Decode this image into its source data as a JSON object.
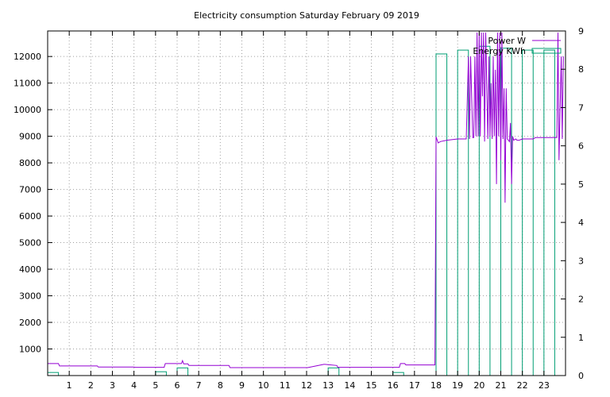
{
  "chart_data": {
    "type": "line",
    "title": "Electricity consumption Saturday February 09 2019",
    "xlabel": "",
    "ylabel": "",
    "y2label": "",
    "xlim": [
      0,
      24
    ],
    "ylim": [
      0,
      12960
    ],
    "y2lim": [
      0,
      9
    ],
    "x_ticks": [
      1,
      2,
      3,
      4,
      5,
      6,
      7,
      8,
      9,
      10,
      11,
      12,
      13,
      14,
      15,
      16,
      17,
      18,
      19,
      20,
      21,
      22,
      23
    ],
    "y_ticks": [
      1000,
      2000,
      3000,
      4000,
      5000,
      6000,
      7000,
      8000,
      9000,
      10000,
      11000,
      12000
    ],
    "y2_ticks": [
      0,
      1,
      2,
      3,
      4,
      5,
      6,
      7,
      8,
      9
    ],
    "grid": true,
    "legend_position": "top-right",
    "colors": {
      "power": "#9400d3",
      "energy": "#009e73"
    },
    "series": [
      {
        "name": "Power W",
        "axis": "left",
        "style": "line",
        "x": [
          0,
          0.5,
          0.55,
          2.3,
          2.35,
          4.0,
          4.05,
          5.4,
          5.45,
          6.2,
          6.25,
          6.3,
          6.5,
          6.55,
          8.4,
          8.45,
          12.0,
          12.05,
          12.8,
          12.85,
          13.4,
          13.45,
          16.3,
          16.35,
          16.55,
          16.6,
          17.95,
          18.0,
          18.1,
          18.2,
          18.5,
          19.0,
          19.4,
          19.5,
          19.55,
          19.6,
          19.7,
          19.75,
          19.8,
          19.85,
          19.9,
          19.95,
          20.0,
          20.05,
          20.1,
          20.15,
          20.2,
          20.25,
          20.3,
          20.4,
          20.45,
          20.5,
          20.55,
          20.6,
          20.65,
          20.7,
          20.75,
          20.8,
          20.85,
          20.9,
          20.95,
          21.0,
          21.05,
          21.1,
          21.15,
          21.2,
          21.25,
          21.3,
          21.35,
          21.4,
          21.45,
          21.5,
          21.55,
          21.6,
          21.7,
          21.75,
          21.8,
          21.85,
          22.0,
          22.5,
          22.6,
          23.0,
          23.6,
          23.65,
          23.7,
          23.8,
          23.85,
          23.9
        ],
        "y": [
          450,
          450,
          360,
          360,
          320,
          320,
          310,
          310,
          450,
          450,
          560,
          440,
          440,
          380,
          380,
          300,
          300,
          300,
          420,
          420,
          380,
          310,
          310,
          450,
          450,
          400,
          400,
          8980,
          8750,
          8800,
          8850,
          8900,
          8900,
          12000,
          8900,
          12000,
          8950,
          8950,
          12000,
          9000,
          12900,
          9000,
          12900,
          9000,
          12900,
          10500,
          12900,
          8800,
          12900,
          8900,
          12000,
          9000,
          11000,
          8900,
          12000,
          9000,
          11500,
          7200,
          12900,
          9000,
          12900,
          8100,
          12900,
          8900,
          10800,
          6500,
          10800,
          8900,
          8850,
          8800,
          9500,
          7200,
          9000,
          8850,
          8900,
          8850,
          8850,
          8850,
          8900,
          8900,
          8950,
          8950,
          8950,
          12900,
          8100,
          12000,
          8900,
          12000
        ]
      },
      {
        "name": "Energy KWh",
        "axis": "right",
        "style": "bar",
        "x": [
          0,
          1,
          2,
          3,
          4,
          5,
          6,
          7,
          8,
          9,
          10,
          11,
          12,
          13,
          14,
          15,
          16,
          17,
          18,
          19,
          20,
          21,
          22,
          23
        ],
        "values": [
          0.08,
          0,
          0,
          0,
          0,
          0.1,
          0.2,
          0,
          0,
          0,
          0,
          0,
          0,
          0.2,
          0,
          0,
          0.08,
          0,
          8.4,
          8.5,
          8.6,
          8.55,
          8.5,
          8.5
        ]
      }
    ]
  }
}
